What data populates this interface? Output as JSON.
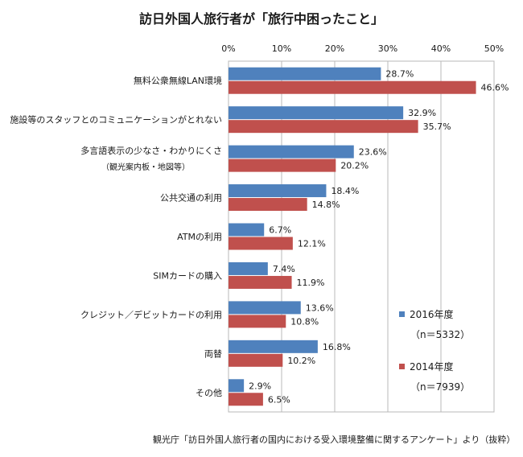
{
  "chart_data": {
    "type": "bar",
    "orientation": "horizontal",
    "title": "訪日外国人旅行者が「旅行中困ったこと」",
    "xlim": [
      0,
      50
    ],
    "xticks": [
      "0%",
      "10%",
      "20%",
      "30%",
      "40%",
      "50%"
    ],
    "grid": true,
    "legend_position": "right",
    "categories": [
      [
        "無料公衆無線LAN環境"
      ],
      [
        "施設等のスタッフとのコミュニケーションがとれない"
      ],
      [
        "多言語表示の少なさ・わかりにくさ",
        "（観光案内板・地図等）"
      ],
      [
        "公共交通の利用"
      ],
      [
        "ATMの利用"
      ],
      [
        "SIMカードの購入"
      ],
      [
        "クレジット／デビットカードの利用"
      ],
      [
        "両替"
      ],
      [
        "その他"
      ]
    ],
    "series": [
      {
        "name": "2016年度",
        "note": "（n＝5332）",
        "color": "#4f81bd",
        "values": [
          28.7,
          32.9,
          23.6,
          18.4,
          6.7,
          7.4,
          13.6,
          16.8,
          2.9
        ],
        "labels": [
          "28.7%",
          "32.9%",
          "23.6%",
          "18.4%",
          "6.7%",
          "7.4%",
          "13.6%",
          "16.8%",
          "2.9%"
        ]
      },
      {
        "name": "2014年度",
        "note": "（n＝7939）",
        "color": "#c0504d",
        "values": [
          46.6,
          35.7,
          20.2,
          14.8,
          12.1,
          11.9,
          10.8,
          10.2,
          6.5
        ],
        "labels": [
          "46.6%",
          "35.7%",
          "20.2%",
          "14.8%",
          "12.1%",
          "11.9%",
          "10.8%",
          "10.2%",
          "6.5%"
        ]
      }
    ]
  },
  "footer": {
    "source": "観光庁「訪日外国人旅行者の国内における受入環境整備に関するアンケート」より（抜粋）"
  }
}
